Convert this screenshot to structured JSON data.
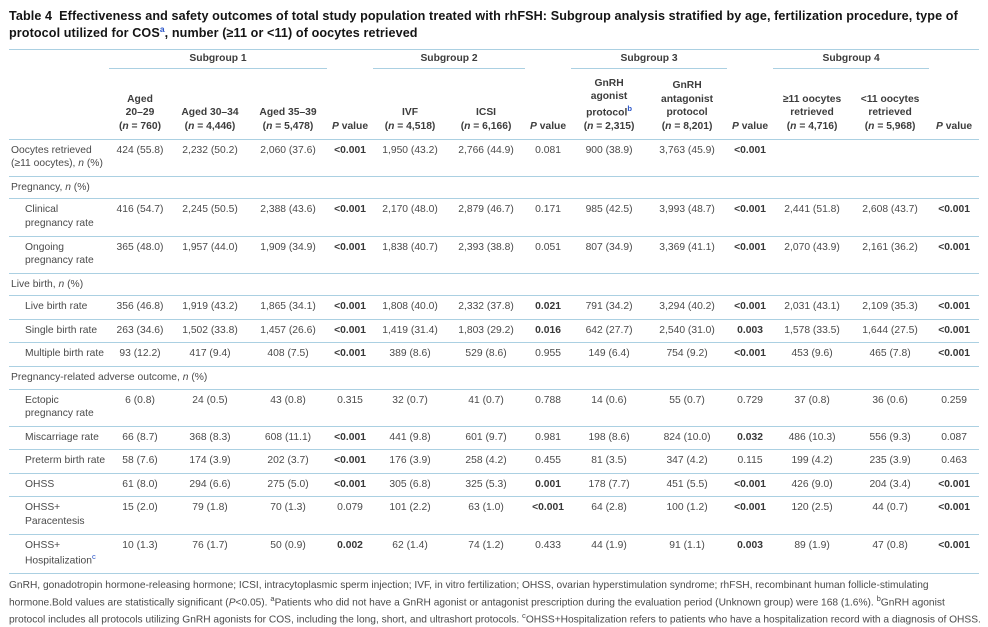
{
  "table": {
    "title": {
      "label": "Table 4",
      "part1": "Effectiveness and safety outcomes of total study population treated with rhFSH: Subgroup analysis stratified by age, fertilization procedure, type of protocol utilized for COS",
      "sup": "a",
      "part2": ", number (≥11 or <11) of oocytes retrieved"
    },
    "header": {
      "groups": [
        {
          "label": "Subgroup 1",
          "cols": 3
        },
        {
          "label": "Subgroup 2",
          "cols": 2
        },
        {
          "label": "Subgroup 3",
          "cols": 2
        },
        {
          "label": "Subgroup 4",
          "cols": 2
        }
      ],
      "p_value": {
        "italic": "P",
        "text": " value"
      },
      "columns": [
        {
          "type": "data",
          "label": "Aged\n20–29",
          "n": "760"
        },
        {
          "type": "data",
          "label": "Aged 30–34",
          "n": "4,446"
        },
        {
          "type": "data",
          "label": "Aged 35–39",
          "n": "5,478"
        },
        {
          "type": "p"
        },
        {
          "type": "data",
          "label": "IVF",
          "n": "4,518"
        },
        {
          "type": "data",
          "label": "ICSI",
          "n": "6,166"
        },
        {
          "type": "p"
        },
        {
          "type": "data",
          "label": "GnRH\nagonist\nprotocol",
          "sup": "b",
          "n": "2,315"
        },
        {
          "type": "data",
          "label": "GnRH\nantagonist\nprotocol",
          "n": "8,201"
        },
        {
          "type": "p"
        },
        {
          "type": "data",
          "label": "≥11 oocytes\nretrieved",
          "n": "4,716"
        },
        {
          "type": "data",
          "label": "<11 oocytes\nretrieved",
          "n": "5,968"
        },
        {
          "type": "p"
        }
      ]
    },
    "rows": [
      {
        "label": [
          {
            "t": "Oocytes retrieved (≥11 oocytes), "
          },
          {
            "i": "n"
          },
          {
            "t": " (%)"
          }
        ],
        "indent": false,
        "cells": [
          "424 (55.8)",
          "2,232 (50.2)",
          "2,060 (37.6)",
          {
            "v": "<0.001",
            "bold": true
          },
          "1,950 (43.2)",
          "2,766 (44.9)",
          "0.081",
          "900 (38.9)",
          "3,763 (45.9)",
          {
            "v": "<0.001",
            "bold": true
          },
          "",
          "",
          ""
        ]
      },
      {
        "section": [
          {
            "t": "Pregnancy, "
          },
          {
            "i": "n"
          },
          {
            "t": " (%)"
          }
        ]
      },
      {
        "label": [
          {
            "t": "Clinical pregnancy rate"
          }
        ],
        "indent": true,
        "cells": [
          "416 (54.7)",
          "2,245 (50.5)",
          "2,388 (43.6)",
          {
            "v": "<0.001",
            "bold": true
          },
          "2,170 (48.0)",
          "2,879 (46.7)",
          "0.171",
          "985 (42.5)",
          "3,993 (48.7)",
          {
            "v": "<0.001",
            "bold": true
          },
          "2,441 (51.8)",
          "2,608 (43.7)",
          {
            "v": "<0.001",
            "bold": true
          }
        ]
      },
      {
        "label": [
          {
            "t": "Ongoing pregnancy rate"
          }
        ],
        "indent": true,
        "cells": [
          "365 (48.0)",
          "1,957 (44.0)",
          "1,909 (34.9)",
          {
            "v": "<0.001",
            "bold": true
          },
          "1,838 (40.7)",
          "2,393 (38.8)",
          "0.051",
          "807 (34.9)",
          "3,369 (41.1)",
          {
            "v": "<0.001",
            "bold": true
          },
          "2,070 (43.9)",
          "2,161 (36.2)",
          {
            "v": "<0.001",
            "bold": true
          }
        ]
      },
      {
        "section": [
          {
            "t": "Live birth, "
          },
          {
            "i": "n"
          },
          {
            "t": " (%)"
          }
        ]
      },
      {
        "label": [
          {
            "t": "Live birth rate"
          }
        ],
        "indent": true,
        "cells": [
          "356 (46.8)",
          "1,919 (43.2)",
          "1,865 (34.1)",
          {
            "v": "<0.001",
            "bold": true
          },
          "1,808 (40.0)",
          "2,332 (37.8)",
          {
            "v": "0.021",
            "bold": true
          },
          "791 (34.2)",
          "3,294 (40.2)",
          {
            "v": "<0.001",
            "bold": true
          },
          "2,031 (43.1)",
          "2,109 (35.3)",
          {
            "v": "<0.001",
            "bold": true
          }
        ]
      },
      {
        "label": [
          {
            "t": "Single birth rate"
          }
        ],
        "indent": true,
        "cells": [
          "263 (34.6)",
          "1,502 (33.8)",
          "1,457 (26.6)",
          {
            "v": "<0.001",
            "bold": true
          },
          "1,419 (31.4)",
          "1,803 (29.2)",
          {
            "v": "0.016",
            "bold": true
          },
          "642 (27.7)",
          "2,540 (31.0)",
          {
            "v": "0.003",
            "bold": true
          },
          "1,578 (33.5)",
          "1,644 (27.5)",
          {
            "v": "<0.001",
            "bold": true
          }
        ]
      },
      {
        "label": [
          {
            "t": "Multiple birth rate"
          }
        ],
        "indent": true,
        "cells": [
          "93 (12.2)",
          "417 (9.4)",
          "408 (7.5)",
          {
            "v": "<0.001",
            "bold": true
          },
          "389 (8.6)",
          "529 (8.6)",
          "0.955",
          "149 (6.4)",
          "754 (9.2)",
          {
            "v": "<0.001",
            "bold": true
          },
          "453 (9.6)",
          "465 (7.8)",
          {
            "v": "<0.001",
            "bold": true
          }
        ]
      },
      {
        "section": [
          {
            "t": "Pregnancy-related adverse outcome, "
          },
          {
            "i": "n"
          },
          {
            "t": " (%)"
          }
        ]
      },
      {
        "label": [
          {
            "t": "Ectopic pregnancy rate"
          }
        ],
        "indent": true,
        "cells": [
          "6 (0.8)",
          "24 (0.5)",
          "43 (0.8)",
          "0.315",
          "32 (0.7)",
          "41 (0.7)",
          "0.788",
          "14 (0.6)",
          "55 (0.7)",
          "0.729",
          "37 (0.8)",
          "36 (0.6)",
          "0.259"
        ]
      },
      {
        "label": [
          {
            "t": "Miscarriage rate"
          }
        ],
        "indent": true,
        "cells": [
          "66 (8.7)",
          "368 (8.3)",
          "608 (11.1)",
          {
            "v": "<0.001",
            "bold": true
          },
          "441 (9.8)",
          "601 (9.7)",
          "0.981",
          "198 (8.6)",
          "824 (10.0)",
          {
            "v": "0.032",
            "bold": true
          },
          "486 (10.3)",
          "556 (9.3)",
          "0.087"
        ]
      },
      {
        "label": [
          {
            "t": "Preterm birth rate"
          }
        ],
        "indent": true,
        "cells": [
          "58 (7.6)",
          "174 (3.9)",
          "202 (3.7)",
          {
            "v": "<0.001",
            "bold": true
          },
          "176 (3.9)",
          "258 (4.2)",
          "0.455",
          "81 (3.5)",
          "347 (4.2)",
          "0.115",
          "199 (4.2)",
          "235 (3.9)",
          "0.463"
        ]
      },
      {
        "label": [
          {
            "t": "OHSS"
          }
        ],
        "indent": true,
        "cells": [
          "61 (8.0)",
          "294 (6.6)",
          "275 (5.0)",
          {
            "v": "<0.001",
            "bold": true
          },
          "305 (6.8)",
          "325 (5.3)",
          {
            "v": "0.001",
            "bold": true
          },
          "178 (7.7)",
          "451 (5.5)",
          {
            "v": "<0.001",
            "bold": true
          },
          "426 (9.0)",
          "204 (3.4)",
          {
            "v": "<0.001",
            "bold": true
          }
        ]
      },
      {
        "label": [
          {
            "t": "OHSS+ Paracentesis"
          }
        ],
        "indent": true,
        "cells": [
          "15 (2.0)",
          "79 (1.8)",
          "70 (1.3)",
          "0.079",
          "101 (2.2)",
          "63 (1.0)",
          {
            "v": "<0.001",
            "bold": true
          },
          "64 (2.8)",
          "100 (1.2)",
          {
            "v": "<0.001",
            "bold": true
          },
          "120 (2.5)",
          "44 (0.7)",
          {
            "v": "<0.001",
            "bold": true
          }
        ]
      },
      {
        "label": [
          {
            "t": "OHSS+ Hospitalization"
          },
          {
            "s": "c"
          }
        ],
        "indent": true,
        "cells": [
          "10 (1.3)",
          "76 (1.7)",
          "50 (0.9)",
          {
            "v": "0.002",
            "bold": true
          },
          "62 (1.4)",
          "74 (1.2)",
          "0.433",
          "44 (1.9)",
          "91 (1.1)",
          {
            "v": "0.003",
            "bold": true
          },
          "89 (1.9)",
          "47 (0.8)",
          {
            "v": "<0.001",
            "bold": true
          }
        ]
      }
    ],
    "footnote": [
      {
        "t": "GnRH, gonadotropin hormone-releasing hormone; ICSI, intracytoplasmic sperm injection; IVF, in vitro fertilization; OHSS, ovarian hyperstimulation syndrome; rhFSH, recombinant human follicle-stimulating hormone.Bold values are statistically significant ("
      },
      {
        "i": "P"
      },
      {
        "t": "<0.05). "
      },
      {
        "s": "a"
      },
      {
        "t": "Patients who did not have a GnRH agonist or antagonist prescription during the evaluation period (Unknown group) were 168 (1.6%). "
      },
      {
        "s": "b"
      },
      {
        "t": "GnRH agonist protocol includes all protocols utilizing GnRH agonists for COS, including the long, short, and ultrashort protocols. "
      },
      {
        "s": "c"
      },
      {
        "t": "OHSS+Hospitalization refers to patients who have a hospitalization record with a diagnosis of OHSS."
      }
    ]
  },
  "colors": {
    "rule": "#abd0e2",
    "text": "#4a4a4a",
    "title_text": "#141414",
    "footnote_marker_blue": "#2853c8"
  }
}
